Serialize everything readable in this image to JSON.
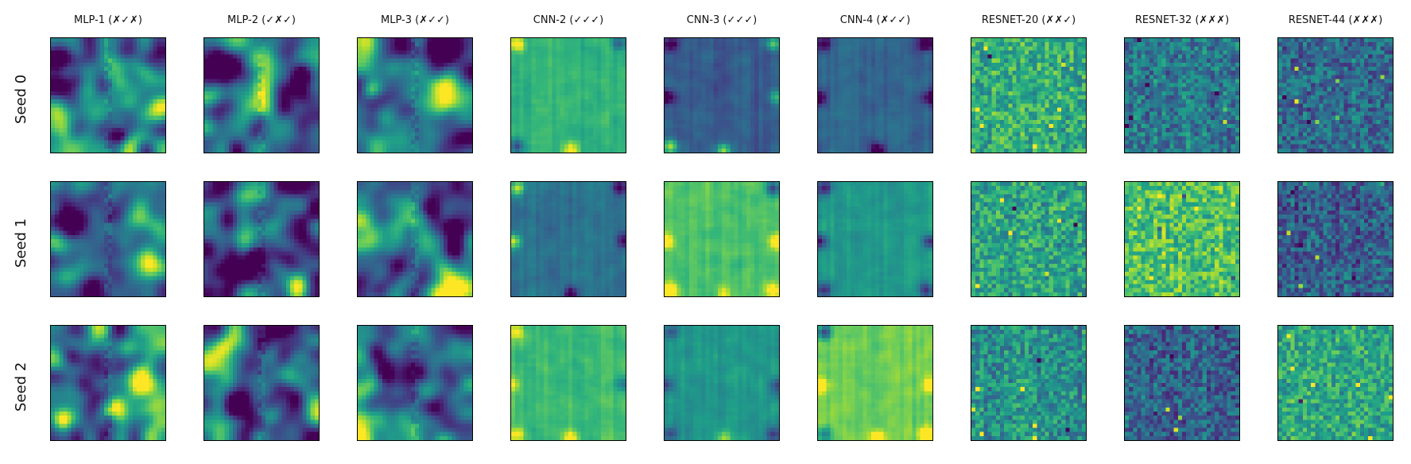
{
  "chart_data": {
    "type": "heatmap",
    "colormap": "viridis",
    "grid": false,
    "columns": [
      {
        "title": "MLP-1 (✗✓✗)",
        "style": "blobby"
      },
      {
        "title": "MLP-2 (✓✗✓)",
        "style": "blobby"
      },
      {
        "title": "MLP-3 (✗✓✓)",
        "style": "blobby"
      },
      {
        "title": "CNN-2 (✓✓✓)",
        "style": "frame"
      },
      {
        "title": "CNN-3 (✓✓✓)",
        "style": "frame"
      },
      {
        "title": "CNN-4 (✗✓✓)",
        "style": "frame"
      },
      {
        "title": "RESNET-20 (✗✗✓)",
        "style": "noisy"
      },
      {
        "title": "RESNET-32 (✗✗✗)",
        "style": "noisy"
      },
      {
        "title": "RESNET-44 (✗✗✗)",
        "style": "noisy"
      }
    ],
    "rows": [
      {
        "label": "Seed 0",
        "mean_levels": [
          0.45,
          0.35,
          0.38,
          0.65,
          0.28,
          0.32,
          0.62,
          0.4,
          0.35
        ]
      },
      {
        "label": "Seed 1",
        "mean_levels": [
          0.32,
          0.3,
          0.45,
          0.38,
          0.72,
          0.55,
          0.58,
          0.72,
          0.3
        ]
      },
      {
        "label": "Seed 2",
        "mean_levels": [
          0.4,
          0.3,
          0.33,
          0.68,
          0.52,
          0.78,
          0.5,
          0.32,
          0.6
        ]
      }
    ]
  }
}
